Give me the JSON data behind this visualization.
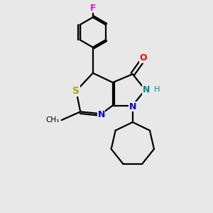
{
  "background_color": "#e8e8e8",
  "bond_color": "#000000",
  "atom_colors": {
    "F": "#ff00ff",
    "O": "#ff0000",
    "N": "#0000cc",
    "S": "#aaaa00",
    "C": "#000000"
  },
  "figsize": [
    3.0,
    3.0
  ],
  "dpi": 100,
  "lw": 1.6
}
